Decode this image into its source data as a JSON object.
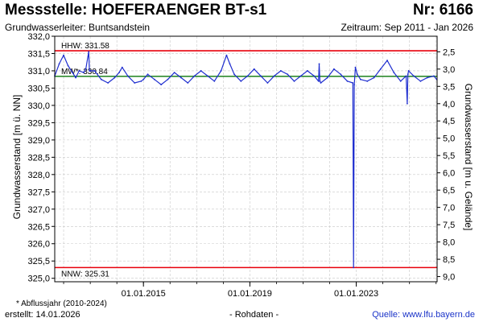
{
  "header": {
    "title": "Messstelle: HOEFERAENGER BT-s1",
    "number": "Nr: 6166",
    "subtitle": "Grundwasserleiter: Buntsandstein",
    "period": "Zeitraum: Sep 2011 - Jan 2026"
  },
  "footer": {
    "footnote": "* Abflussjahr (2010-2024)",
    "created": "erstellt:  14.01.2026",
    "raw_data": "- Rohdaten -",
    "source": "Quelle:  www.lfu.bayern.de"
  },
  "colors": {
    "series": "#1f2ecf",
    "reference_high_low": "#e8000b",
    "reference_mean": "#2e8b2e",
    "grid": "#c8c8c8",
    "frame": "#000000"
  },
  "chart_data": {
    "type": "line",
    "title": "",
    "xlabel": "",
    "ylabel": "Grundwasserstand [m ü. NN]",
    "ylabel_right": "Grundwasserstand [m u. Gelände]",
    "xlim": [
      "2011-09-01",
      "2026-01-15"
    ],
    "ylim": [
      324.9,
      332.0
    ],
    "ylim_right": [
      9.15,
      2.05
    ],
    "x_ticks": [
      "2015-01-01",
      "2019-01-01",
      "2023-01-01"
    ],
    "x_tick_labels": [
      "01.01.2015",
      "01.01.2019",
      "01.01.2023"
    ],
    "y_ticks": [
      325.0,
      325.5,
      326.0,
      326.5,
      327.0,
      327.5,
      328.0,
      328.5,
      329.0,
      329.5,
      330.0,
      330.5,
      331.0,
      331.5,
      332.0
    ],
    "y_tick_labels": [
      "325,0",
      "325,5",
      "326,0",
      "326,5",
      "327,0",
      "327,5",
      "328,0",
      "328,5",
      "329,0",
      "329,5",
      "330,0",
      "330,5",
      "331,0",
      "331,5",
      "332,0"
    ],
    "y_ticks_right": [
      2.5,
      3.0,
      3.5,
      4.0,
      4.5,
      5.0,
      5.5,
      6.0,
      6.5,
      7.0,
      7.5,
      8.0,
      8.5,
      9.0
    ],
    "y_tick_labels_right": [
      "2,5",
      "3,0",
      "3,5",
      "4,0",
      "4,5",
      "5,0",
      "5,5",
      "6,0",
      "6,5",
      "7,0",
      "7,5",
      "8,0",
      "8,5",
      "9,0"
    ],
    "grid": true,
    "reference_lines": [
      {
        "label": "HHW: 331.58",
        "value": 331.58,
        "role": "high"
      },
      {
        "label": "MW*: 330.84",
        "value": 330.84,
        "role": "mean"
      },
      {
        "label": "NNW: 325.31",
        "value": 325.31,
        "role": "low"
      }
    ],
    "series": [
      {
        "x": [
          "2011-09-01",
          "2011-11-01",
          "2012-01-01",
          "2012-03-01",
          "2012-05-01",
          "2012-06-15",
          "2012-08-01",
          "2012-10-01",
          "2012-11-01",
          "2012-12-10",
          "2012-12-20",
          "2013-01-01",
          "2013-03-01",
          "2013-06-01",
          "2013-09-01",
          "2013-12-01",
          "2014-02-01",
          "2014-03-15",
          "2014-06-01",
          "2014-09-01",
          "2014-12-01",
          "2015-01-01",
          "2015-03-01",
          "2015-06-01",
          "2015-09-01",
          "2015-12-01",
          "2016-03-01",
          "2016-06-01",
          "2016-09-01",
          "2016-12-01",
          "2017-03-01",
          "2017-06-01",
          "2017-09-01",
          "2017-12-01",
          "2018-02-15",
          "2018-04-01",
          "2018-06-01",
          "2018-09-01",
          "2018-12-01",
          "2019-03-01",
          "2019-06-01",
          "2019-09-01",
          "2019-12-01",
          "2020-03-01",
          "2020-06-01",
          "2020-09-01",
          "2020-12-01",
          "2021-03-01",
          "2021-06-01",
          "2021-08-01",
          "2021-08-10",
          "2021-08-20",
          "2021-09-01",
          "2021-12-01",
          "2022-03-01",
          "2022-06-01",
          "2022-09-01",
          "2022-11-15",
          "2022-11-25",
          "2022-12-05",
          "2022-12-20",
          "2023-01-15",
          "2023-03-01",
          "2023-06-01",
          "2023-09-01",
          "2023-12-01",
          "2024-03-01",
          "2024-06-01",
          "2024-09-01",
          "2024-11-15",
          "2024-12-01",
          "2024-12-10",
          "2024-12-20",
          "2025-03-01",
          "2025-06-01",
          "2025-09-01",
          "2025-12-01",
          "2026-01-10"
        ],
        "y": [
          330.85,
          331.2,
          331.45,
          331.15,
          330.95,
          330.8,
          331.0,
          330.95,
          331.05,
          331.55,
          331.0,
          331.0,
          331.0,
          330.75,
          330.65,
          330.8,
          330.95,
          331.1,
          330.85,
          330.65,
          330.7,
          330.75,
          330.9,
          330.75,
          330.6,
          330.75,
          330.95,
          330.8,
          330.65,
          330.85,
          331.0,
          330.85,
          330.7,
          331.0,
          331.45,
          331.2,
          330.9,
          330.7,
          330.85,
          331.05,
          330.85,
          330.65,
          330.85,
          331.0,
          330.9,
          330.7,
          330.85,
          331.0,
          330.85,
          330.7,
          331.2,
          330.7,
          330.65,
          330.8,
          331.05,
          330.9,
          330.7,
          330.65,
          325.31,
          330.6,
          331.1,
          330.9,
          330.75,
          330.7,
          330.8,
          331.05,
          331.3,
          330.95,
          330.7,
          330.85,
          330.05,
          330.9,
          331.0,
          330.85,
          330.7,
          330.8,
          330.85,
          330.75
        ]
      }
    ]
  }
}
